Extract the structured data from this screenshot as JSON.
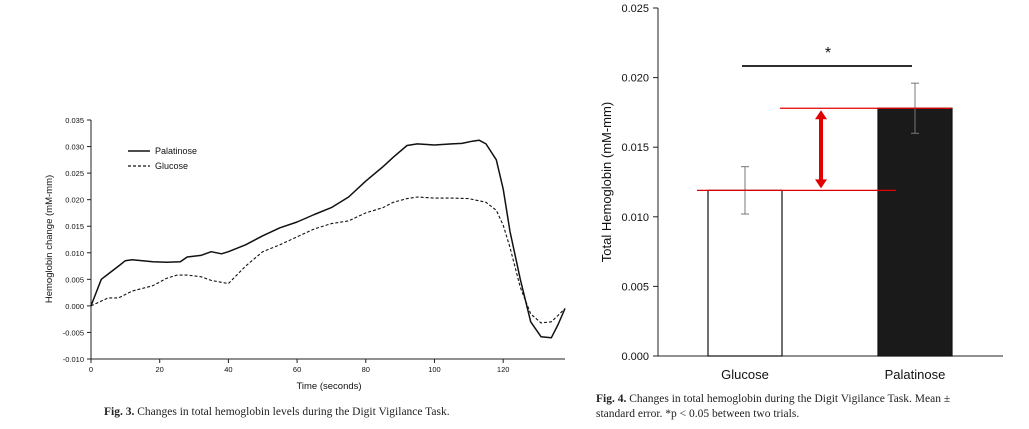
{
  "figure3": {
    "caption_label": "Fig. 3.",
    "caption_text": "Changes in total hemoglobin levels during the Digit Vigilance Task.",
    "chart_data": {
      "type": "line",
      "title": "",
      "xlabel": "Time (seconds)",
      "ylabel": "Hemoglobin change (mM-mm)",
      "xlim": [
        0,
        138
      ],
      "ylim": [
        -0.01,
        0.035
      ],
      "xticks": [
        0,
        20,
        40,
        60,
        80,
        100,
        120
      ],
      "xtick_labels": [
        "0",
        "20",
        "40",
        "60",
        "80",
        "100",
        "120"
      ],
      "yticks": [
        -0.01,
        -0.005,
        0.0,
        0.005,
        0.01,
        0.015,
        0.02,
        0.025,
        0.03,
        0.035
      ],
      "ytick_labels": [
        "-0.010",
        "-0.005",
        "0.000",
        "0.005",
        "0.010",
        "0.015",
        "0.020",
        "0.025",
        "0.030",
        "0.035"
      ],
      "legend_position": "top-left",
      "series": [
        {
          "name": "Palatinose",
          "style": "solid",
          "x": [
            0,
            3,
            5,
            8,
            10,
            12,
            15,
            18,
            22,
            26,
            28,
            32,
            35,
            38,
            40,
            45,
            50,
            55,
            60,
            65,
            70,
            75,
            80,
            85,
            88,
            92,
            95,
            100,
            105,
            108,
            111,
            113,
            115,
            118,
            120,
            122,
            125,
            128,
            131,
            134,
            136,
            138
          ],
          "values": [
            0.0,
            0.005,
            0.006,
            0.0075,
            0.0085,
            0.0087,
            0.0085,
            0.0083,
            0.0082,
            0.0083,
            0.0092,
            0.0095,
            0.0102,
            0.0098,
            0.0102,
            0.0115,
            0.0132,
            0.0147,
            0.0158,
            0.0172,
            0.0185,
            0.0205,
            0.0235,
            0.0262,
            0.028,
            0.0302,
            0.0305,
            0.0303,
            0.0305,
            0.0306,
            0.031,
            0.0312,
            0.0305,
            0.0275,
            0.022,
            0.014,
            0.005,
            -0.003,
            -0.0058,
            -0.006,
            -0.0035,
            -0.0005
          ]
        },
        {
          "name": "Glucose",
          "style": "dashed",
          "x": [
            0,
            5,
            8,
            12,
            15,
            18,
            22,
            25,
            28,
            32,
            35,
            40,
            45,
            50,
            55,
            60,
            65,
            70,
            75,
            80,
            85,
            88,
            92,
            95,
            100,
            105,
            110,
            115,
            118,
            120,
            122,
            125,
            128,
            131,
            134,
            136,
            138
          ],
          "values": [
            0.0,
            0.0015,
            0.0015,
            0.0028,
            0.0033,
            0.0038,
            0.0052,
            0.0058,
            0.0058,
            0.0055,
            0.0048,
            0.0042,
            0.0075,
            0.0102,
            0.0115,
            0.013,
            0.0145,
            0.0155,
            0.016,
            0.0175,
            0.0185,
            0.0195,
            0.0202,
            0.0205,
            0.0203,
            0.0203,
            0.0202,
            0.0195,
            0.018,
            0.0152,
            0.011,
            0.0035,
            -0.0015,
            -0.0032,
            -0.003,
            -0.0018,
            -0.0005
          ]
        }
      ]
    }
  },
  "figure4": {
    "caption_label": "Fig. 4.",
    "caption_line1": "Changes in total hemoglobin during the Digit Vigilance Task. Mean ±",
    "caption_line2": "standard error. *p < 0.05 between two trials.",
    "significance_marker": "*",
    "chart_data": {
      "type": "bar",
      "title": "",
      "xlabel": "",
      "ylabel": "Total Hemoglobin (mM-mm)",
      "ylim": [
        0,
        0.025
      ],
      "yticks": [
        0,
        0.005,
        0.01,
        0.015,
        0.02,
        0.025
      ],
      "ytick_labels": [
        "0.000",
        "0.005",
        "0.010",
        "0.015",
        "0.020",
        "0.025"
      ],
      "categories": [
        "Glucose",
        "Palatinose"
      ],
      "values": [
        0.0119,
        0.0178
      ],
      "errors": [
        0.0017,
        0.0018
      ],
      "bar_colors": [
        "#ffffff",
        "#1a1a1a"
      ],
      "annotation": "red double-headed arrow showing the difference between the two means",
      "annotation_color": "#e00000"
    }
  }
}
